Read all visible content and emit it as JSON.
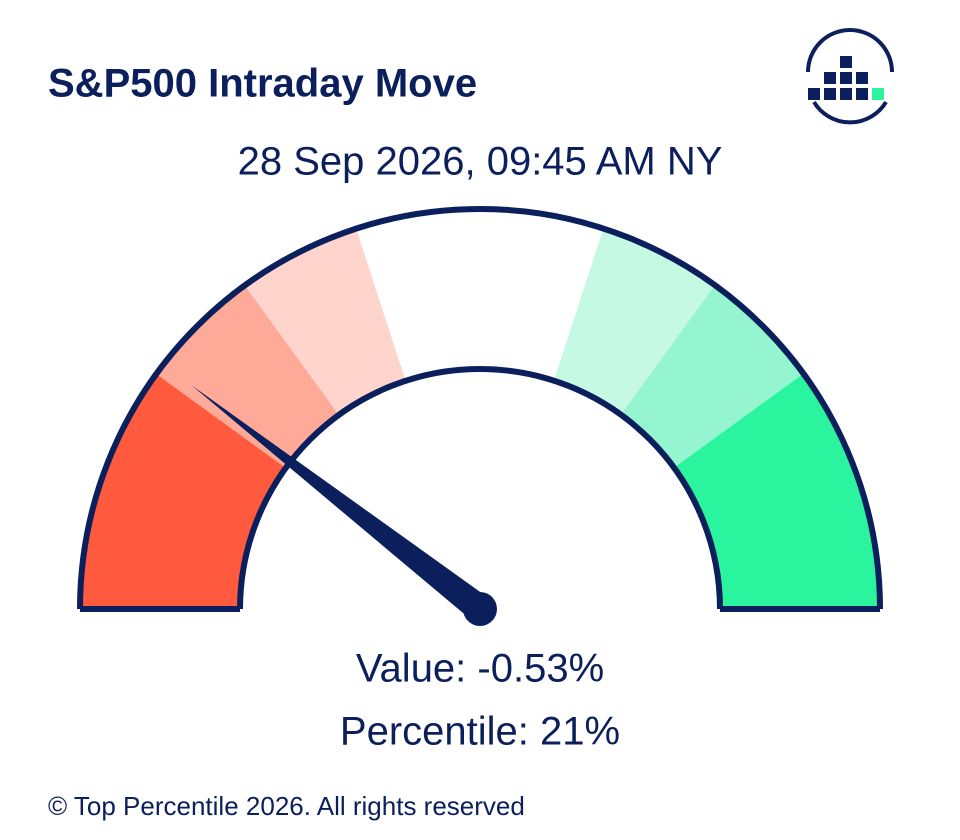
{
  "chart_data": {
    "type": "gauge",
    "title": "S&P500 Intraday Move",
    "subtitle": "28 Sep 2026, 09:45 AM NY",
    "value": -0.53,
    "value_label": "Value: -0.53%",
    "percentile": 21,
    "percentile_label": "Percentile: 21%",
    "lim": [
      0,
      100
    ],
    "bands": [
      {
        "from": 0,
        "to": 10,
        "color": "#ff5a3d"
      },
      {
        "from": 10,
        "to": 20,
        "color": "#ff5a3d"
      },
      {
        "from": 20,
        "to": 30,
        "color": "#ffaa99"
      },
      {
        "from": 30,
        "to": 40,
        "color": "#ffd4cc"
      },
      {
        "from": 40,
        "to": 50,
        "color": "#ffffff"
      },
      {
        "from": 50,
        "to": 60,
        "color": "#ffffff"
      },
      {
        "from": 60,
        "to": 70,
        "color": "#c5f9e3"
      },
      {
        "from": 70,
        "to": 80,
        "color": "#94f5d0"
      },
      {
        "from": 80,
        "to": 90,
        "color": "#2af59e"
      },
      {
        "from": 90,
        "to": 100,
        "color": "#2af59e"
      }
    ],
    "needle_color": "#0b1f5c",
    "footer": "© Top Percentile 2026. All rights reserved"
  }
}
